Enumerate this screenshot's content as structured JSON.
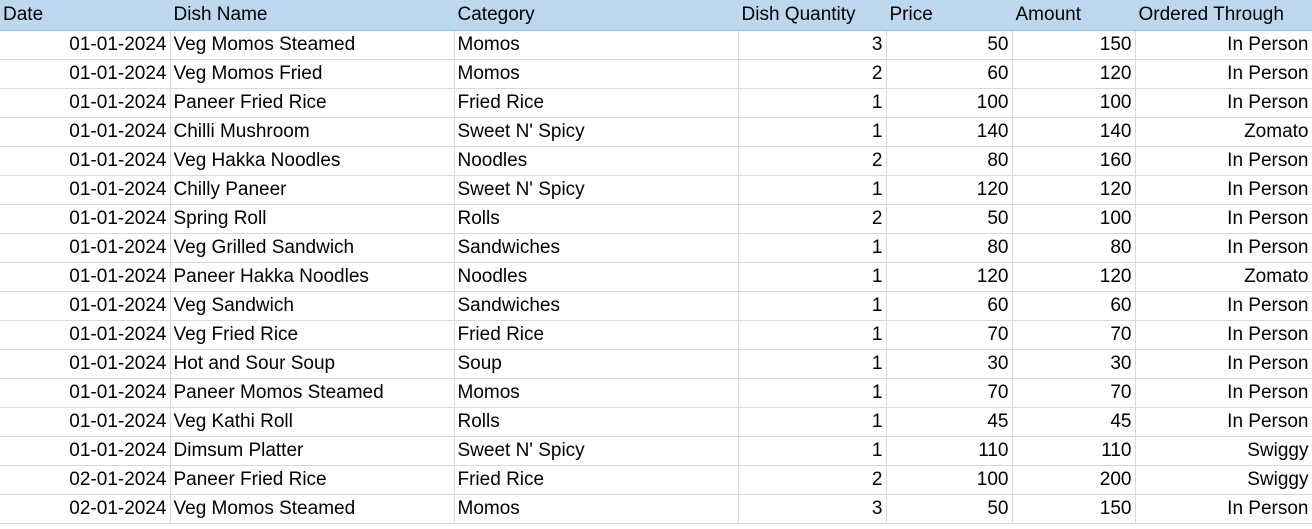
{
  "sheet": {
    "headers": [
      "Date",
      "Dish Name",
      "Category",
      "Dish Quantity",
      "Price",
      "Amount",
      "Ordered Through"
    ],
    "rows": [
      [
        "01-01-2024",
        "Veg Momos Steamed",
        "Momos",
        "3",
        "50",
        "150",
        "In Person"
      ],
      [
        "01-01-2024",
        "Veg Momos Fried",
        "Momos",
        "2",
        "60",
        "120",
        "In Person"
      ],
      [
        "01-01-2024",
        "Paneer Fried Rice",
        "Fried Rice",
        "1",
        "100",
        "100",
        "In Person"
      ],
      [
        "01-01-2024",
        "Chilli Mushroom",
        "Sweet N' Spicy",
        "1",
        "140",
        "140",
        "Zomato"
      ],
      [
        "01-01-2024",
        "Veg Hakka Noodles",
        "Noodles",
        "2",
        "80",
        "160",
        "In Person"
      ],
      [
        "01-01-2024",
        "Chilly Paneer",
        "Sweet N' Spicy",
        "1",
        "120",
        "120",
        "In Person"
      ],
      [
        "01-01-2024",
        "Spring Roll",
        "Rolls",
        "2",
        "50",
        "100",
        "In Person"
      ],
      [
        "01-01-2024",
        "Veg Grilled Sandwich",
        "Sandwiches",
        "1",
        "80",
        "80",
        "In Person"
      ],
      [
        "01-01-2024",
        "Paneer Hakka Noodles",
        "Noodles",
        "1",
        "120",
        "120",
        "Zomato"
      ],
      [
        "01-01-2024",
        "Veg Sandwich",
        "Sandwiches",
        "1",
        "60",
        "60",
        "In Person"
      ],
      [
        "01-01-2024",
        "Veg Fried Rice",
        "Fried Rice",
        "1",
        "70",
        "70",
        "In Person"
      ],
      [
        "01-01-2024",
        "Hot and Sour Soup",
        "Soup",
        "1",
        "30",
        "30",
        "In Person"
      ],
      [
        "01-01-2024",
        "Paneer Momos Steamed",
        "Momos",
        "1",
        "70",
        "70",
        "In Person"
      ],
      [
        "01-01-2024",
        "Veg Kathi Roll",
        "Rolls",
        "1",
        "45",
        "45",
        "In Person"
      ],
      [
        "01-01-2024",
        "Dimsum Platter",
        "Sweet N' Spicy",
        "1",
        "110",
        "110",
        "Swiggy"
      ],
      [
        "02-01-2024",
        "Paneer Fried Rice",
        "Fried Rice",
        "2",
        "100",
        "200",
        "Swiggy"
      ],
      [
        "02-01-2024",
        "Veg Momos Steamed",
        "Momos",
        "3",
        "50",
        "150",
        "In Person"
      ]
    ],
    "colors": {
      "header_fill": "#bdd7ee",
      "gridline": "#d9d9d9"
    }
  }
}
